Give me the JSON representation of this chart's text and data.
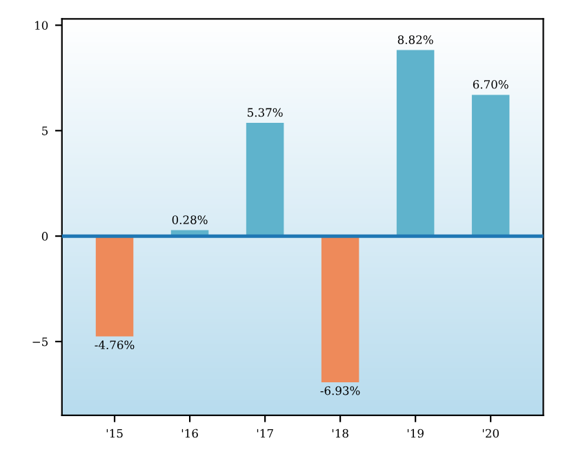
{
  "chart_data": {
    "type": "bar",
    "categories": [
      "'15",
      "'16",
      "'17",
      "'18",
      "'19",
      "'20"
    ],
    "values": [
      -4.76,
      0.28,
      5.37,
      -6.93,
      8.82,
      6.7
    ],
    "value_labels": [
      "-4.76%",
      "0.28%",
      "5.37%",
      "-6.93%",
      "8.82%",
      "6.70%"
    ],
    "colors": [
      "#ee8a5a",
      "#5fb3cc",
      "#5fb3cc",
      "#ee8a5a",
      "#5fb3cc",
      "#5fb3cc"
    ],
    "ylim": [
      -8.5,
      10.3
    ],
    "yticks": [
      {
        "value": -5,
        "label": "−5"
      },
      0,
      5,
      10
    ],
    "ref_lines": [
      {
        "axis": "y",
        "value": 0,
        "color": "#1f77b4",
        "line_style": "solid"
      }
    ],
    "grid": false,
    "legend": false
  }
}
